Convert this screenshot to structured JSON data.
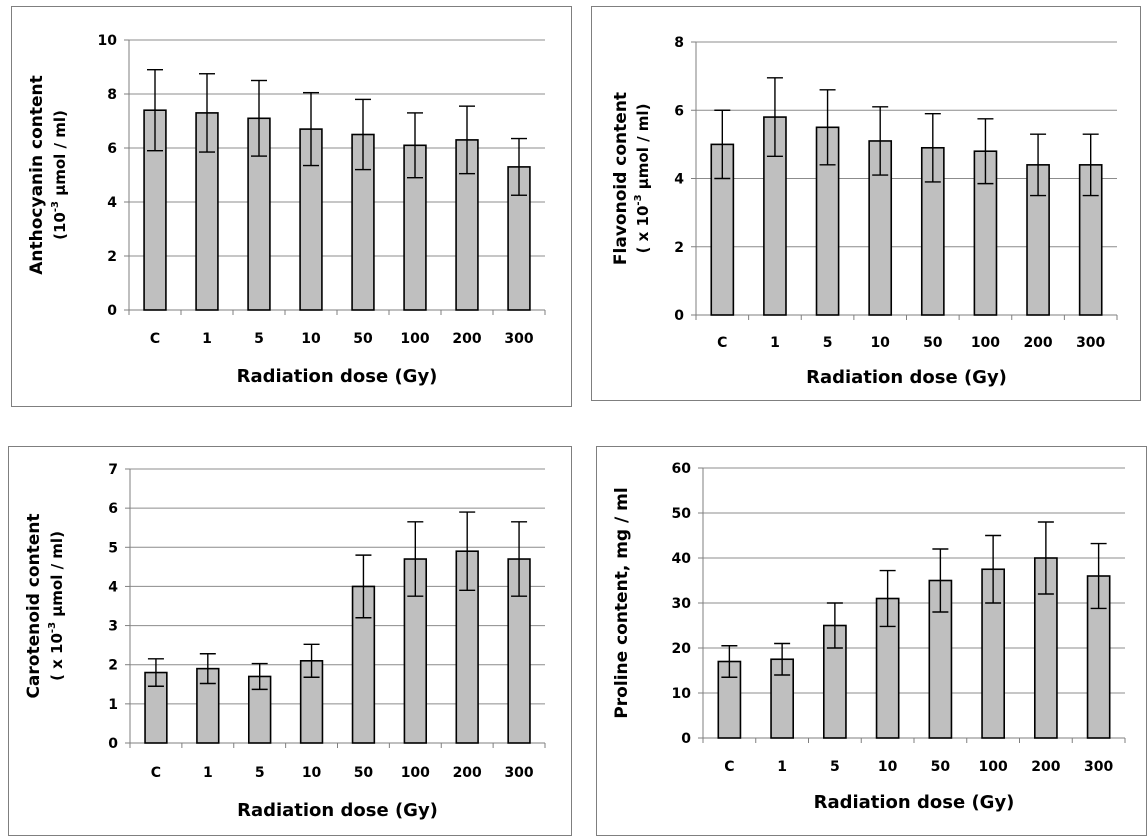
{
  "chart_data": [
    {
      "type": "bar",
      "categories": [
        "C",
        "1",
        "5",
        "10",
        "50",
        "100",
        "200",
        "300"
      ],
      "values": [
        7.4,
        7.3,
        7.1,
        6.7,
        6.5,
        6.1,
        6.3,
        5.3
      ],
      "errors": [
        1.5,
        1.45,
        1.4,
        1.35,
        1.3,
        1.2,
        1.25,
        1.05
      ],
      "ylabel_line1": "Anthocyanin content",
      "ylabel_line2_pre": "(10",
      "ylabel_line2_sup": "-3",
      "ylabel_line2_post": " µmol / ml)",
      "xlabel": "Radiation dose (Gy)",
      "ylim": [
        0,
        10
      ],
      "yticks": [
        "0",
        "2",
        "4",
        "6",
        "8",
        "10"
      ],
      "grid": true
    },
    {
      "type": "bar",
      "categories": [
        "C",
        "1",
        "5",
        "10",
        "50",
        "100",
        "200",
        "300"
      ],
      "values": [
        5.0,
        5.8,
        5.5,
        5.1,
        4.9,
        4.8,
        4.4,
        4.4
      ],
      "errors": [
        1.0,
        1.15,
        1.1,
        1.0,
        1.0,
        0.95,
        0.9,
        0.9
      ],
      "ylabel_line1": "Flavonoid content",
      "ylabel_line2_pre": "( x 10",
      "ylabel_line2_sup": "-3",
      "ylabel_line2_post": " µmol / ml)",
      "xlabel": "Radiation dose (Gy)",
      "ylim": [
        0,
        8
      ],
      "yticks": [
        "0",
        "2",
        "4",
        "6",
        "8"
      ],
      "grid": true
    },
    {
      "type": "bar",
      "categories": [
        "C",
        "1",
        "5",
        "10",
        "50",
        "100",
        "200",
        "300"
      ],
      "values": [
        1.8,
        1.9,
        1.7,
        2.1,
        4.0,
        4.7,
        4.9,
        4.7
      ],
      "errors": [
        0.35,
        0.38,
        0.33,
        0.42,
        0.8,
        0.95,
        1.0,
        0.95
      ],
      "ylabel_line1": "Carotenoid content",
      "ylabel_line2_pre": "( x 10",
      "ylabel_line2_sup": "-3",
      "ylabel_line2_post": " µmol / ml)",
      "xlabel": "Radiation dose (Gy)",
      "ylim": [
        0,
        7
      ],
      "yticks": [
        "0",
        "1",
        "2",
        "3",
        "4",
        "5",
        "6",
        "7"
      ],
      "grid": true
    },
    {
      "type": "bar",
      "categories": [
        "C",
        "1",
        "5",
        "10",
        "50",
        "100",
        "200",
        "300"
      ],
      "values": [
        17,
        17.5,
        25,
        31,
        35,
        37.5,
        40,
        36
      ],
      "errors": [
        3.5,
        3.5,
        5,
        6.2,
        7,
        7.5,
        8,
        7.2
      ],
      "ylabel_line1": "Proline content, mg / ml",
      "ylabel_line2_pre": "",
      "ylabel_line2_sup": "",
      "ylabel_line2_post": "",
      "xlabel": "Radiation dose (Gy)",
      "ylim": [
        0,
        60
      ],
      "yticks": [
        "0",
        "10",
        "20",
        "30",
        "40",
        "50",
        "60"
      ],
      "grid": true
    }
  ]
}
